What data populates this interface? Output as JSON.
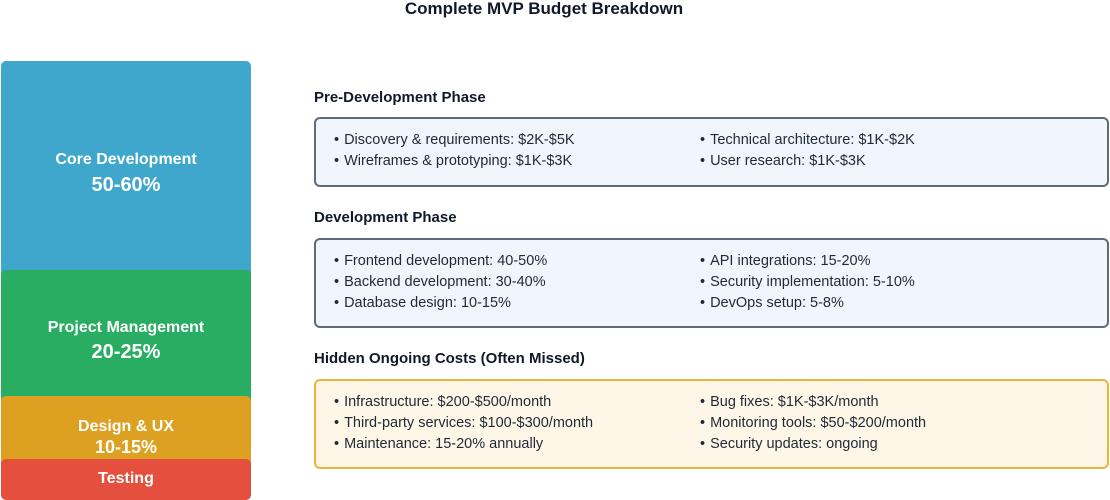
{
  "title": "Complete MVP Budget Breakdown",
  "allocation": {
    "core": {
      "label": "Core Development",
      "value": "50-60%",
      "color": "#3fa7cc"
    },
    "project_management": {
      "label": "Project Management",
      "value": "20-25%",
      "color": "#28ad62"
    },
    "design": {
      "label": "Design & UX",
      "value": "10-15%",
      "color": "#dea020"
    },
    "testing": {
      "label": "Testing",
      "color": "#e5503e"
    }
  },
  "sections": {
    "pre_development": {
      "heading": "Pre-Development Phase",
      "left": [
        "Discovery & requirements: $2K-$5K",
        "Wireframes & prototyping: $1K-$3K"
      ],
      "right": [
        "Technical architecture: $1K-$2K",
        "User research: $1K-$3K"
      ]
    },
    "development": {
      "heading": "Development Phase",
      "left": [
        "Frontend development: 40-50%",
        "Backend development: 30-40%",
        "Database design: 10-15%"
      ],
      "right": [
        "API integrations: 15-20%",
        "Security implementation: 5-10%",
        "DevOps setup: 5-8%"
      ]
    },
    "hidden_costs": {
      "heading": "Hidden Ongoing Costs (Often Missed)",
      "left": [
        "Infrastructure: $200-$500/month",
        "Third-party services: $100-$300/month",
        "Maintenance: 15-20% annually"
      ],
      "right": [
        "Bug fixes: $1K-$3K/month",
        "Monitoring tools: $50-$200/month",
        "Security updates: ongoing"
      ]
    }
  }
}
